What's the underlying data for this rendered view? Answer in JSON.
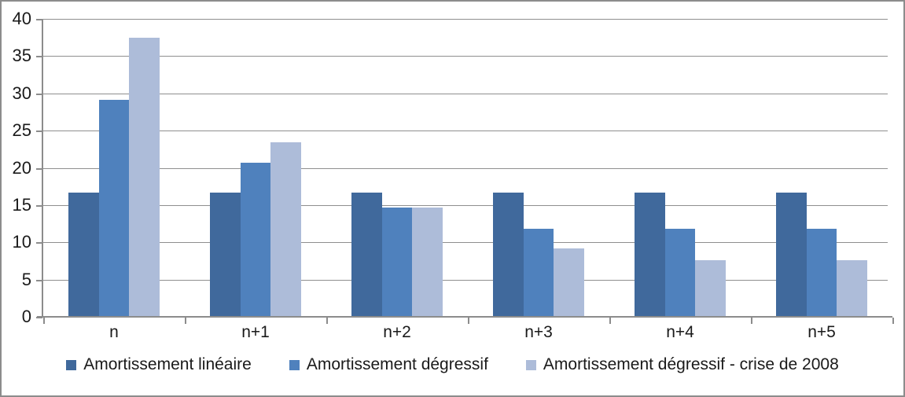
{
  "chart_data": {
    "type": "bar",
    "categories": [
      "n",
      "n+1",
      "n+2",
      "n+3",
      "n+4",
      "n+5"
    ],
    "series": [
      {
        "name": "Amortissement linéaire",
        "color": "#40699C",
        "values": [
          16.67,
          16.67,
          16.67,
          16.67,
          16.67,
          16.67
        ]
      },
      {
        "name": "Amortissement dégressif",
        "color": "#4F81BD",
        "values": [
          29.17,
          20.66,
          14.63,
          11.85,
          11.85,
          11.85
        ]
      },
      {
        "name": "Amortissement dégressif - crise de 2008",
        "color": "#ADBCD9",
        "values": [
          37.5,
          23.44,
          14.65,
          9.15,
          7.63,
          7.63
        ]
      }
    ],
    "title": "",
    "xlabel": "",
    "ylabel": "",
    "ylim": [
      0,
      40
    ],
    "yticks": [
      0,
      5,
      10,
      15,
      20,
      25,
      30,
      35,
      40
    ],
    "grid": true,
    "legend_position": "bottom"
  },
  "style": {
    "gridline_color": "#8f8f8f",
    "axis_color": "#8c8c8c",
    "frame_border_color": "#8c8c8c",
    "text_color": "#1a1a1a",
    "background_color": "#ffffff"
  }
}
